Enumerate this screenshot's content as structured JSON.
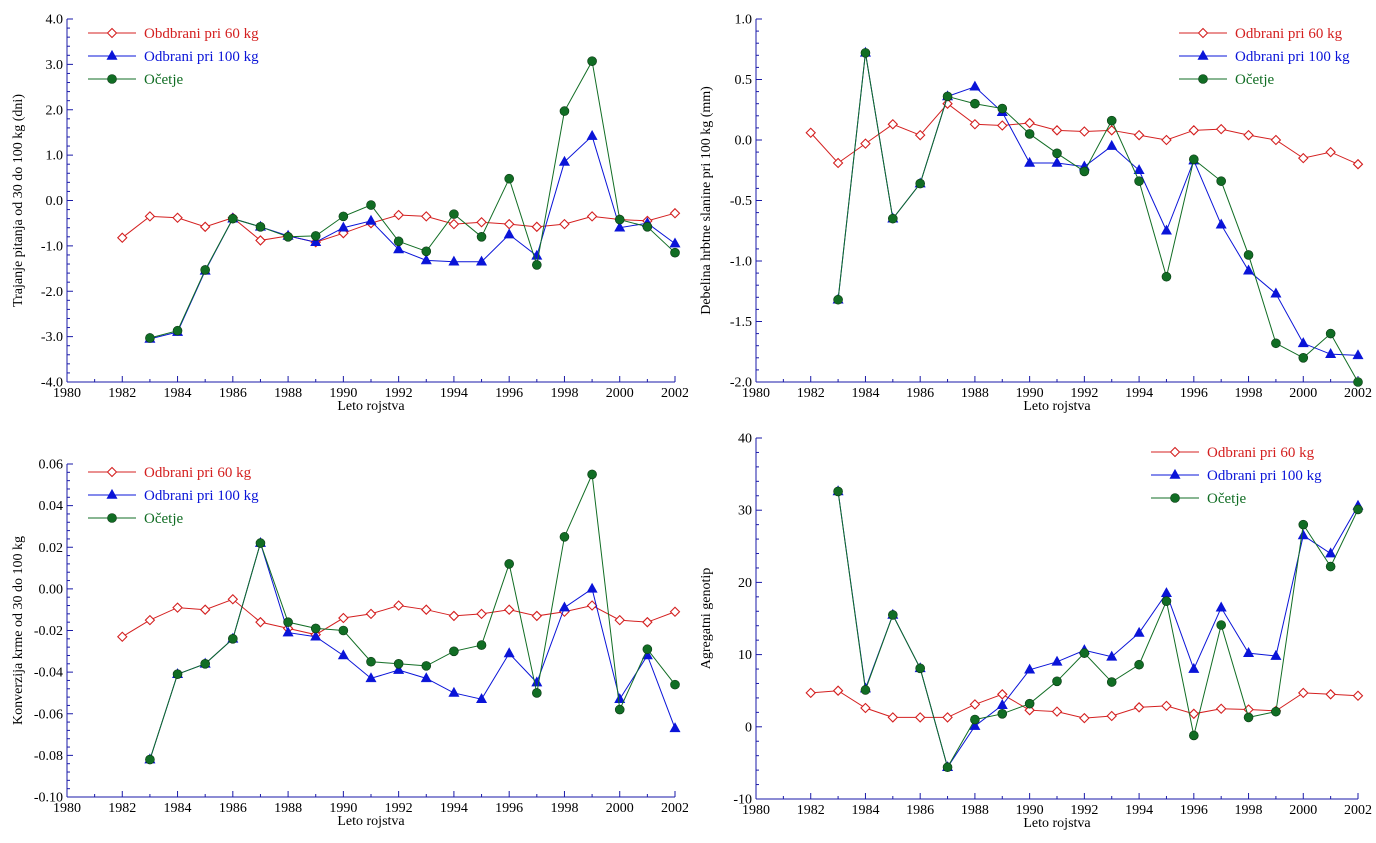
{
  "colors": {
    "red": "#d42020",
    "blue": "#0a14d8",
    "green": "#116d24",
    "axis": "#1a1aa8",
    "text": "#000000"
  },
  "chart_data": [
    {
      "type": "line",
      "xlabel": "Leto rojstva",
      "ylabel": "Trajanje pitanja od 30 do 100 kg (dni)",
      "xlim": [
        1980,
        2002
      ],
      "ylim": [
        -4.0,
        4.0
      ],
      "x_ticks": [
        1980,
        1982,
        1984,
        1986,
        1988,
        1990,
        1992,
        1994,
        1996,
        1998,
        2000,
        2002
      ],
      "y_ticks": [
        -4.0,
        -3.0,
        -2.0,
        -1.0,
        0.0,
        1.0,
        2.0,
        3.0,
        4.0
      ],
      "y_tick_labels": [
        "-4.0",
        "-3.0",
        "-2.0",
        "-1.0",
        "0.0",
        "1.0",
        "2.0",
        "3.0",
        "4.0"
      ],
      "legend_position": "top-left",
      "series": [
        {
          "name": "Obdbrani pri 60 kg",
          "color": "red",
          "marker": "diamond-open",
          "x": [
            1982,
            1983,
            1984,
            1985,
            1986,
            1987,
            1988,
            1989,
            1990,
            1991,
            1992,
            1993,
            1994,
            1995,
            1996,
            1997,
            1998,
            1999,
            2000,
            2001,
            2002
          ],
          "y": [
            -0.82,
            -0.35,
            -0.38,
            -0.58,
            -0.38,
            -0.88,
            -0.78,
            -0.92,
            -0.72,
            -0.5,
            -0.32,
            -0.35,
            -0.52,
            -0.48,
            -0.52,
            -0.58,
            -0.52,
            -0.35,
            -0.42,
            -0.45,
            -0.28
          ]
        },
        {
          "name": "Odbrani pri 100 kg",
          "color": "blue",
          "marker": "triangle",
          "x": [
            1983,
            1984,
            1985,
            1986,
            1987,
            1988,
            1989,
            1990,
            1991,
            1992,
            1993,
            1994,
            1995,
            1996,
            1997,
            1998,
            1999,
            2000,
            2001,
            2002
          ],
          "y": [
            -3.05,
            -2.9,
            -1.55,
            -0.4,
            -0.58,
            -0.78,
            -0.92,
            -0.6,
            -0.45,
            -1.08,
            -1.32,
            -1.35,
            -1.35,
            -0.75,
            -1.22,
            0.85,
            1.42,
            -0.6,
            -0.5,
            -0.95
          ]
        },
        {
          "name": "Očetje",
          "color": "green",
          "marker": "circle",
          "x": [
            1983,
            1984,
            1985,
            1986,
            1987,
            1988,
            1989,
            1990,
            1991,
            1992,
            1993,
            1994,
            1995,
            1996,
            1997,
            1998,
            1999,
            2000,
            2001,
            2002
          ],
          "y": [
            -3.03,
            -2.87,
            -1.53,
            -0.4,
            -0.58,
            -0.8,
            -0.78,
            -0.35,
            -0.1,
            -0.9,
            -1.12,
            -0.3,
            -0.8,
            0.48,
            -1.42,
            1.97,
            3.07,
            -0.42,
            -0.58,
            -1.15
          ]
        }
      ]
    },
    {
      "type": "line",
      "xlabel": "Leto rojstva",
      "ylabel": "Debelina hrbtne slanine pri 100 kg (mm)",
      "xlim": [
        1980,
        2002
      ],
      "ylim": [
        -2.0,
        1.0
      ],
      "x_ticks": [
        1980,
        1982,
        1984,
        1986,
        1988,
        1990,
        1992,
        1994,
        1996,
        1998,
        2000,
        2002
      ],
      "y_ticks": [
        -2.0,
        -1.5,
        -1.0,
        -0.5,
        0.0,
        0.5,
        1.0
      ],
      "y_tick_labels": [
        "-2.0",
        "-1.5",
        "-1.0",
        "-0.5",
        "0.0",
        "0.5",
        "1.0"
      ],
      "legend_position": "top-right",
      "series": [
        {
          "name": "Odbrani pri 60 kg",
          "color": "red",
          "marker": "diamond-open",
          "x": [
            1982,
            1983,
            1984,
            1985,
            1986,
            1987,
            1988,
            1989,
            1990,
            1991,
            1992,
            1993,
            1994,
            1995,
            1996,
            1997,
            1998,
            1999,
            2000,
            2001,
            2002
          ],
          "y": [
            0.06,
            -0.19,
            -0.03,
            0.13,
            0.04,
            0.3,
            0.13,
            0.12,
            0.14,
            0.08,
            0.07,
            0.08,
            0.04,
            0.0,
            0.08,
            0.09,
            0.04,
            0.0,
            -0.15,
            -0.1,
            -0.2
          ]
        },
        {
          "name": "Odbrani pri 100 kg",
          "color": "blue",
          "marker": "triangle",
          "x": [
            1983,
            1984,
            1985,
            1986,
            1987,
            1988,
            1989,
            1990,
            1991,
            1992,
            1993,
            1994,
            1995,
            1996,
            1997,
            1998,
            1999,
            2000,
            2001,
            2002
          ],
          "y": [
            -1.32,
            0.72,
            -0.65,
            -0.36,
            0.36,
            0.44,
            0.23,
            -0.19,
            -0.19,
            -0.22,
            -0.05,
            -0.25,
            -0.75,
            -0.17,
            -0.7,
            -1.08,
            -1.27,
            -1.68,
            -1.77,
            -1.78
          ]
        },
        {
          "name": "Očetje",
          "color": "green",
          "marker": "circle",
          "x": [
            1983,
            1984,
            1985,
            1986,
            1987,
            1988,
            1989,
            1990,
            1991,
            1992,
            1993,
            1994,
            1995,
            1996,
            1997,
            1998,
            1999,
            2000,
            2001,
            2002
          ],
          "y": [
            -1.32,
            0.72,
            -0.65,
            -0.36,
            0.36,
            0.3,
            0.26,
            0.05,
            -0.11,
            -0.26,
            0.16,
            -0.34,
            -1.13,
            -0.16,
            -0.34,
            -0.95,
            -1.68,
            -1.8,
            -1.6,
            -2.0
          ]
        }
      ]
    },
    {
      "type": "line",
      "xlabel": "Leto rojstva",
      "ylabel": "Konverzija krme od 30 do 100 kg",
      "xlim": [
        1980,
        2002
      ],
      "ylim": [
        -0.1,
        0.06
      ],
      "x_ticks": [
        1980,
        1982,
        1984,
        1986,
        1988,
        1990,
        1992,
        1994,
        1996,
        1998,
        2000,
        2002
      ],
      "y_ticks": [
        -0.1,
        -0.08,
        -0.06,
        -0.04,
        -0.02,
        0.0,
        0.02,
        0.04,
        0.06
      ],
      "y_tick_labels": [
        "-0.10",
        "-0.08",
        "-0.06",
        "-0.04",
        "-0.02",
        "0.00",
        "0.02",
        "0.04",
        "0.06"
      ],
      "legend_position": "top-left",
      "series": [
        {
          "name": "Odbrani pri 60 kg",
          "color": "red",
          "marker": "diamond-open",
          "x": [
            1982,
            1983,
            1984,
            1985,
            1986,
            1987,
            1988,
            1989,
            1990,
            1991,
            1992,
            1993,
            1994,
            1995,
            1996,
            1997,
            1998,
            1999,
            2000,
            2001,
            2002
          ],
          "y": [
            -0.023,
            -0.015,
            -0.009,
            -0.01,
            -0.005,
            -0.016,
            -0.019,
            -0.022,
            -0.014,
            -0.012,
            -0.008,
            -0.01,
            -0.013,
            -0.012,
            -0.01,
            -0.013,
            -0.011,
            -0.008,
            -0.015,
            -0.016,
            -0.011
          ]
        },
        {
          "name": "Odbrani pri 100 kg",
          "color": "blue",
          "marker": "triangle",
          "x": [
            1983,
            1984,
            1985,
            1986,
            1987,
            1988,
            1989,
            1990,
            1991,
            1992,
            1993,
            1994,
            1995,
            1996,
            1997,
            1998,
            1999,
            2000,
            2001,
            2002
          ],
          "y": [
            -0.082,
            -0.041,
            -0.036,
            -0.024,
            0.022,
            -0.021,
            -0.023,
            -0.032,
            -0.043,
            -0.039,
            -0.043,
            -0.05,
            -0.053,
            -0.031,
            -0.045,
            -0.009,
            0.0,
            -0.053,
            -0.032,
            -0.067
          ]
        },
        {
          "name": "Očetje",
          "color": "green",
          "marker": "circle",
          "x": [
            1983,
            1984,
            1985,
            1986,
            1987,
            1988,
            1989,
            1990,
            1991,
            1992,
            1993,
            1994,
            1995,
            1996,
            1997,
            1998,
            1999,
            2000,
            2001,
            2002
          ],
          "y": [
            -0.082,
            -0.041,
            -0.036,
            -0.024,
            0.022,
            -0.016,
            -0.019,
            -0.02,
            -0.035,
            -0.036,
            -0.037,
            -0.03,
            -0.027,
            0.012,
            -0.05,
            0.025,
            0.055,
            -0.058,
            -0.029,
            -0.046
          ]
        }
      ]
    },
    {
      "type": "line",
      "xlabel": "Leto rojstva",
      "ylabel": "Agregatni genotip",
      "xlim": [
        1980,
        2002
      ],
      "ylim": [
        -10,
        40
      ],
      "x_ticks": [
        1980,
        1982,
        1984,
        1986,
        1988,
        1990,
        1992,
        1994,
        1996,
        1998,
        2000,
        2002
      ],
      "y_ticks": [
        -10,
        0,
        10,
        20,
        30,
        40
      ],
      "y_tick_labels": [
        "-10",
        "0",
        "10",
        "20",
        "30",
        "40"
      ],
      "legend_position": "top-right",
      "series": [
        {
          "name": "Odbrani pri 60 kg",
          "color": "red",
          "marker": "diamond-open",
          "x": [
            1982,
            1983,
            1984,
            1985,
            1986,
            1987,
            1988,
            1989,
            1990,
            1991,
            1992,
            1993,
            1994,
            1995,
            1996,
            1997,
            1998,
            1999,
            2000,
            2001,
            2002
          ],
          "y": [
            4.7,
            5.0,
            2.6,
            1.3,
            1.3,
            1.3,
            3.1,
            4.5,
            2.3,
            2.1,
            1.2,
            1.5,
            2.7,
            2.9,
            1.8,
            2.5,
            2.4,
            2.2,
            4.7,
            4.5,
            4.3
          ]
        },
        {
          "name": "Odbrani pri 100 kg",
          "color": "blue",
          "marker": "triangle",
          "x": [
            1983,
            1984,
            1985,
            1986,
            1987,
            1988,
            1989,
            1990,
            1991,
            1992,
            1993,
            1994,
            1995,
            1996,
            1997,
            1998,
            1999,
            2000,
            2001,
            2002
          ],
          "y": [
            32.6,
            5.3,
            15.5,
            8.1,
            -5.6,
            0.1,
            3.0,
            7.9,
            9.0,
            10.6,
            9.7,
            13.0,
            18.5,
            8.0,
            16.5,
            10.2,
            9.8,
            26.5,
            24.0,
            30.6
          ]
        },
        {
          "name": "Očetje",
          "color": "green",
          "marker": "circle",
          "x": [
            1983,
            1984,
            1985,
            1986,
            1987,
            1988,
            1989,
            1990,
            1991,
            1992,
            1993,
            1994,
            1995,
            1996,
            1997,
            1998,
            1999,
            2000,
            2001,
            2002
          ],
          "y": [
            32.6,
            5.1,
            15.5,
            8.1,
            -5.6,
            1.0,
            1.8,
            3.2,
            6.3,
            10.2,
            6.2,
            8.6,
            17.4,
            -1.2,
            14.1,
            1.3,
            2.1,
            28.0,
            22.2,
            30.1
          ]
        }
      ]
    }
  ]
}
